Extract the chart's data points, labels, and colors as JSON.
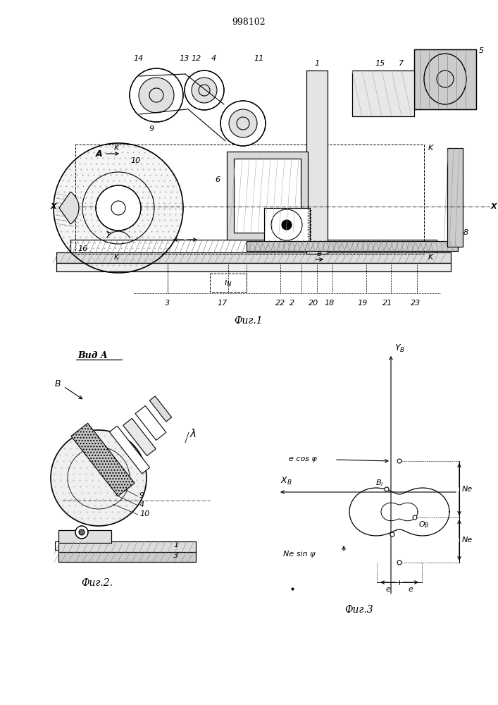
{
  "patent_number": "998102",
  "bg_color": "#ffffff",
  "line_color": "#000000",
  "fig1_caption": "Фиг.1",
  "fig2_caption": "Фиг.2.",
  "fig3_caption": "Фиг.3",
  "fig2_label": "Вид A"
}
